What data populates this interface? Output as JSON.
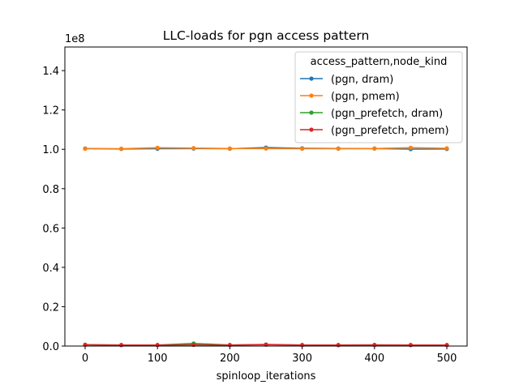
{
  "chart_data": {
    "type": "line",
    "title": "LLC-loads for pgn access pattern",
    "xlabel": "spinloop_iterations",
    "ylabel": "",
    "y_offset_label": "1e8",
    "xlim": [
      -28,
      528
    ],
    "ylim": [
      0,
      152000000
    ],
    "x_ticks": [
      0,
      100,
      200,
      300,
      400,
      500
    ],
    "x_tick_labels": [
      "0",
      "100",
      "200",
      "300",
      "400",
      "500"
    ],
    "y_ticks": [
      0,
      20000000,
      40000000,
      60000000,
      80000000,
      100000000,
      120000000,
      140000000
    ],
    "y_tick_labels": [
      "0.0",
      "0.2",
      "0.4",
      "0.6",
      "0.8",
      "1.0",
      "1.2",
      "1.4"
    ],
    "grid": false,
    "legend": {
      "title": "access_pattern,node_kind",
      "placement": "top-right"
    },
    "x": [
      0,
      50,
      100,
      150,
      200,
      250,
      300,
      350,
      400,
      450,
      500
    ],
    "series": [
      {
        "name": "(pgn, dram)",
        "color": "#1f77b4",
        "values": [
          100400000,
          100200000,
          100300000,
          100400000,
          100300000,
          100900000,
          100500000,
          100400000,
          100400000,
          100100000,
          100200000
        ]
      },
      {
        "name": "(pgn, pmem)",
        "color": "#ff7f0e",
        "values": [
          100300000,
          100300000,
          100800000,
          100600000,
          100400000,
          100400000,
          100300000,
          100300000,
          100400000,
          100800000,
          100500000
        ]
      },
      {
        "name": "(pgn_prefetch, dram)",
        "color": "#2ca02c",
        "values": [
          700000,
          500000,
          500000,
          1300000,
          500000,
          700000,
          500000,
          500000,
          600000,
          500000,
          500000
        ]
      },
      {
        "name": "(pgn_prefetch, pmem)",
        "color": "#d62728",
        "values": [
          600000,
          500000,
          500000,
          600000,
          500000,
          800000,
          500000,
          500000,
          500000,
          500000,
          500000
        ]
      }
    ]
  }
}
